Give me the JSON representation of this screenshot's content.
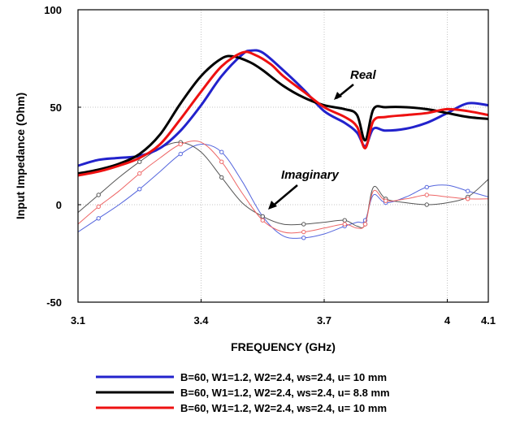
{
  "chart_data": {
    "type": "line",
    "xlabel": "FREQUENCY (GHz)",
    "ylabel": "Input Impedance (Ohm)",
    "xlim": [
      3.1,
      4.1
    ],
    "ylim": [
      -50,
      100
    ],
    "x_ticks": [
      "3.1",
      "3.4",
      "3.7",
      "4",
      "4.1"
    ],
    "x_tick_values": [
      3.1,
      3.4,
      3.7,
      4.0,
      4.1
    ],
    "y_ticks": [
      "-50",
      "0",
      "50",
      "100"
    ],
    "y_tick_values": [
      -50,
      0,
      50,
      100
    ],
    "grid": true,
    "legend_position": "bottom",
    "annotations": [
      {
        "text": "Real",
        "x": 3.79,
        "y": 56
      },
      {
        "text": "Imaginary",
        "x": 3.74,
        "y": 5
      }
    ],
    "series": [
      {
        "name": "B=60, W1=1.2, W2=2.4, ws=2.4, u= 10 mm",
        "part": "real",
        "color": "#2222cc",
        "width": 3,
        "points": [
          [
            3.1,
            20
          ],
          [
            3.15,
            23
          ],
          [
            3.2,
            24
          ],
          [
            3.25,
            25
          ],
          [
            3.3,
            29
          ],
          [
            3.35,
            38
          ],
          [
            3.4,
            51
          ],
          [
            3.45,
            66
          ],
          [
            3.5,
            77
          ],
          [
            3.52,
            79
          ],
          [
            3.55,
            78
          ],
          [
            3.6,
            69
          ],
          [
            3.65,
            59
          ],
          [
            3.7,
            48
          ],
          [
            3.75,
            42
          ],
          [
            3.78,
            37
          ],
          [
            3.8,
            30
          ],
          [
            3.82,
            39
          ],
          [
            3.85,
            38
          ],
          [
            3.9,
            39
          ],
          [
            3.95,
            42
          ],
          [
            4.0,
            47
          ],
          [
            4.05,
            52
          ],
          [
            4.1,
            51
          ]
        ]
      },
      {
        "name": "B=60, W1=1.2, W2=2.4, ws=2.4, u= 8.8 mm",
        "part": "real",
        "color": "#000000",
        "width": 3,
        "points": [
          [
            3.1,
            16
          ],
          [
            3.15,
            18
          ],
          [
            3.2,
            21
          ],
          [
            3.25,
            26
          ],
          [
            3.3,
            36
          ],
          [
            3.35,
            52
          ],
          [
            3.4,
            66
          ],
          [
            3.45,
            75
          ],
          [
            3.48,
            76
          ],
          [
            3.52,
            73
          ],
          [
            3.55,
            69
          ],
          [
            3.6,
            61
          ],
          [
            3.65,
            55
          ],
          [
            3.7,
            51
          ],
          [
            3.75,
            49
          ],
          [
            3.78,
            46
          ],
          [
            3.8,
            33
          ],
          [
            3.82,
            49
          ],
          [
            3.85,
            50
          ],
          [
            3.9,
            50
          ],
          [
            3.95,
            49
          ],
          [
            4.0,
            47
          ],
          [
            4.05,
            45
          ],
          [
            4.1,
            44
          ]
        ]
      },
      {
        "name": "B=60, W1=1.2, W2=2.4, ws=2.4, u= 10 mm",
        "part": "real",
        "color": "#ee1111",
        "width": 3,
        "points": [
          [
            3.1,
            15
          ],
          [
            3.15,
            17
          ],
          [
            3.2,
            20
          ],
          [
            3.25,
            24
          ],
          [
            3.3,
            31
          ],
          [
            3.35,
            44
          ],
          [
            3.4,
            58
          ],
          [
            3.45,
            71
          ],
          [
            3.5,
            78
          ],
          [
            3.53,
            77
          ],
          [
            3.57,
            72
          ],
          [
            3.6,
            66
          ],
          [
            3.65,
            58
          ],
          [
            3.7,
            50
          ],
          [
            3.75,
            45
          ],
          [
            3.78,
            40
          ],
          [
            3.8,
            29
          ],
          [
            3.82,
            43
          ],
          [
            3.85,
            45
          ],
          [
            3.9,
            46
          ],
          [
            3.95,
            47
          ],
          [
            4.0,
            49
          ],
          [
            4.05,
            48
          ],
          [
            4.1,
            46
          ]
        ]
      },
      {
        "name": "B=60, W1=1.2, W2=2.4, ws=2.4, u= 10 mm",
        "part": "imag",
        "color": "#5566dd",
        "width": 1,
        "points": [
          [
            3.1,
            -14
          ],
          [
            3.15,
            -7
          ],
          [
            3.2,
            0
          ],
          [
            3.25,
            8
          ],
          [
            3.3,
            17
          ],
          [
            3.35,
            26
          ],
          [
            3.4,
            31
          ],
          [
            3.45,
            27
          ],
          [
            3.5,
            12
          ],
          [
            3.55,
            -6
          ],
          [
            3.6,
            -16
          ],
          [
            3.65,
            -17
          ],
          [
            3.7,
            -15
          ],
          [
            3.75,
            -11
          ],
          [
            3.78,
            -9
          ],
          [
            3.8,
            -8
          ],
          [
            3.82,
            5
          ],
          [
            3.85,
            1
          ],
          [
            3.9,
            4
          ],
          [
            3.95,
            9
          ],
          [
            4.0,
            10
          ],
          [
            4.05,
            7
          ],
          [
            4.1,
            4
          ]
        ]
      },
      {
        "name": "B=60, W1=1.2, W2=2.4, ws=2.4, u= 8.8 mm",
        "part": "imag",
        "color": "#555555",
        "width": 1,
        "points": [
          [
            3.1,
            -4
          ],
          [
            3.15,
            5
          ],
          [
            3.2,
            14
          ],
          [
            3.25,
            22
          ],
          [
            3.3,
            29
          ],
          [
            3.35,
            32
          ],
          [
            3.4,
            27
          ],
          [
            3.45,
            14
          ],
          [
            3.5,
            1
          ],
          [
            3.55,
            -6
          ],
          [
            3.6,
            -10
          ],
          [
            3.65,
            -10
          ],
          [
            3.7,
            -9
          ],
          [
            3.75,
            -8
          ],
          [
            3.78,
            -11
          ],
          [
            3.8,
            -10
          ],
          [
            3.82,
            9
          ],
          [
            3.85,
            3
          ],
          [
            3.9,
            1
          ],
          [
            3.95,
            0
          ],
          [
            4.0,
            1
          ],
          [
            4.05,
            4
          ],
          [
            4.1,
            13
          ]
        ]
      },
      {
        "name": "B=60, W1=1.2, W2=2.4, ws=2.4, u= 10 mm",
        "part": "imag",
        "color": "#ee6666",
        "width": 1,
        "points": [
          [
            3.1,
            -10
          ],
          [
            3.15,
            -1
          ],
          [
            3.2,
            7
          ],
          [
            3.25,
            16
          ],
          [
            3.3,
            24
          ],
          [
            3.35,
            31
          ],
          [
            3.4,
            32
          ],
          [
            3.45,
            22
          ],
          [
            3.5,
            6
          ],
          [
            3.55,
            -8
          ],
          [
            3.6,
            -14
          ],
          [
            3.65,
            -14
          ],
          [
            3.7,
            -12
          ],
          [
            3.75,
            -10
          ],
          [
            3.78,
            -12
          ],
          [
            3.8,
            -10
          ],
          [
            3.82,
            7
          ],
          [
            3.85,
            2
          ],
          [
            3.9,
            3
          ],
          [
            3.95,
            5
          ],
          [
            4.0,
            4
          ],
          [
            4.05,
            3
          ],
          [
            4.1,
            3
          ]
        ]
      }
    ],
    "legend": [
      {
        "label": "B=60, W1=1.2, W2=2.4, ws=2.4, u= 10 mm",
        "color": "#2222cc"
      },
      {
        "label": "B=60, W1=1.2, W2=2.4, ws=2.4, u= 8.8 mm",
        "color": "#000000"
      },
      {
        "label": "B=60, W1=1.2, W2=2.4, ws=2.4, u= 10 mm",
        "color": "#ee1111"
      }
    ]
  }
}
